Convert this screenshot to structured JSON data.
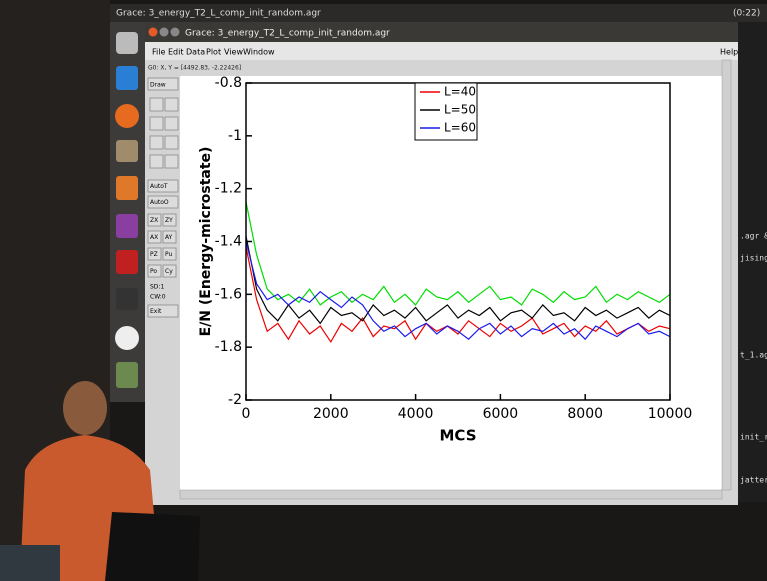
{
  "top_panel": {
    "title": "Grace: 3_energy_T2_L_comp_init_random.agr",
    "clock": "(0:22)"
  },
  "window": {
    "title": "Grace: 3_energy_T2_L_comp_init_random.agr",
    "menu": [
      "File",
      "Edit",
      "Data",
      "Plot",
      "View",
      "Window"
    ],
    "help": "Help",
    "status": "G0: X, Y = [4492.83, -2.22426]"
  },
  "toolbar": {
    "buttons": [
      "Draw",
      "AutoT",
      "AutoO",
      "ZX",
      "ZY",
      "AX",
      "AY",
      "PZ",
      "Pu",
      "Po",
      "Cy"
    ],
    "info": [
      "SD:1",
      "CW:0"
    ],
    "exit": "Exit"
  },
  "terminal": {
    "lines": [
      ".agr &",
      "jising",
      "t_1.ag",
      "init_r",
      "jatter"
    ]
  },
  "chart_data": {
    "type": "line",
    "xlabel": "MCS",
    "ylabel": "E/N   (Energy-microstate)",
    "x": [
      0,
      250,
      500,
      750,
      1000,
      1250,
      1500,
      1750,
      2000,
      2250,
      2500,
      2750,
      3000,
      3250,
      3500,
      3750,
      4000,
      4250,
      4500,
      4750,
      5000,
      5250,
      5500,
      5750,
      6000,
      6250,
      6500,
      6750,
      7000,
      7250,
      7500,
      7750,
      8000,
      8250,
      8500,
      8750,
      9000,
      9250,
      9500,
      9750,
      10000
    ],
    "xlim": [
      0,
      10000
    ],
    "xticks": [
      0,
      2000,
      4000,
      6000,
      8000,
      10000
    ],
    "ylim": [
      -2,
      -0.8
    ],
    "yticks": [
      -2,
      -1.8,
      -1.6,
      -1.4,
      -1.2,
      -1,
      -0.8
    ],
    "legend": "top-center",
    "series": [
      {
        "color": "#00dd00",
        "values": [
          -1.25,
          -1.45,
          -1.58,
          -1.62,
          -1.6,
          -1.63,
          -1.58,
          -1.64,
          -1.61,
          -1.59,
          -1.63,
          -1.6,
          -1.62,
          -1.57,
          -1.63,
          -1.6,
          -1.64,
          -1.58,
          -1.61,
          -1.62,
          -1.59,
          -1.63,
          -1.6,
          -1.57,
          -1.62,
          -1.61,
          -1.64,
          -1.58,
          -1.6,
          -1.63,
          -1.59,
          -1.62,
          -1.61,
          -1.57,
          -1.63,
          -1.6,
          -1.62,
          -1.59,
          -1.61,
          -1.63,
          -1.6
        ]
      },
      {
        "name": "L=40",
        "color": "#ee0000",
        "values": [
          -1.42,
          -1.62,
          -1.74,
          -1.71,
          -1.77,
          -1.7,
          -1.75,
          -1.72,
          -1.78,
          -1.71,
          -1.74,
          -1.69,
          -1.76,
          -1.72,
          -1.73,
          -1.7,
          -1.77,
          -1.71,
          -1.74,
          -1.72,
          -1.75,
          -1.7,
          -1.73,
          -1.76,
          -1.71,
          -1.74,
          -1.72,
          -1.69,
          -1.75,
          -1.73,
          -1.71,
          -1.76,
          -1.72,
          -1.74,
          -1.7,
          -1.75,
          -1.73,
          -1.71,
          -1.74,
          -1.72,
          -1.73
        ]
      },
      {
        "name": "L=50",
        "color": "#000000",
        "values": [
          -1.38,
          -1.58,
          -1.66,
          -1.7,
          -1.64,
          -1.69,
          -1.66,
          -1.71,
          -1.65,
          -1.68,
          -1.67,
          -1.7,
          -1.64,
          -1.68,
          -1.66,
          -1.69,
          -1.65,
          -1.7,
          -1.67,
          -1.64,
          -1.69,
          -1.66,
          -1.68,
          -1.65,
          -1.7,
          -1.67,
          -1.66,
          -1.69,
          -1.64,
          -1.68,
          -1.67,
          -1.7,
          -1.65,
          -1.68,
          -1.66,
          -1.69,
          -1.67,
          -1.65,
          -1.69,
          -1.66,
          -1.68
        ]
      },
      {
        "name": "L=60",
        "color": "#1a1aee",
        "values": [
          -1.4,
          -1.56,
          -1.62,
          -1.6,
          -1.64,
          -1.61,
          -1.63,
          -1.59,
          -1.62,
          -1.65,
          -1.61,
          -1.64,
          -1.7,
          -1.74,
          -1.72,
          -1.76,
          -1.73,
          -1.71,
          -1.75,
          -1.72,
          -1.74,
          -1.77,
          -1.73,
          -1.71,
          -1.75,
          -1.72,
          -1.76,
          -1.73,
          -1.74,
          -1.71,
          -1.75,
          -1.73,
          -1.77,
          -1.72,
          -1.74,
          -1.76,
          -1.73,
          -1.71,
          -1.75,
          -1.74,
          -1.76
        ]
      }
    ]
  }
}
